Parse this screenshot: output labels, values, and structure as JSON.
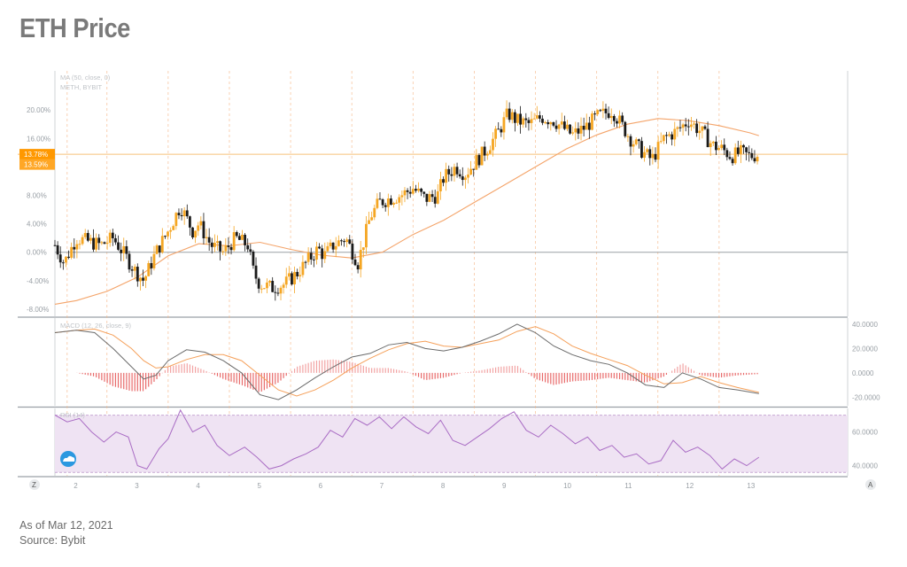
{
  "title": "ETH Price",
  "footer": {
    "date_line": "As of Mar 12, 2021",
    "source_line": "Source: Bybit"
  },
  "colors": {
    "up_candle": "#f5a623",
    "down_candle": "#1a1a1a",
    "ma_line": "#f4a46a",
    "price_line": "#f7c27a",
    "session_line": "#f6b88a",
    "zero_line": "#9aa0a6",
    "macd_line": "#6b6b6b",
    "signal_line": "#f5a05a",
    "hist_pos": "#f2a3a3",
    "hist_neg": "#e86a6a",
    "rsi_line": "#a96cc4",
    "rsi_band": "#efe3f3",
    "rsi_band_edge": "#c7a8d4",
    "badge_primary": "#ff9800",
    "badge_secondary": "#ffa726"
  },
  "panes": {
    "price": {
      "legend_line1": "MA (50, close, 0)",
      "legend_line2": "METH, BYBIT",
      "badge_primary": "13.78%",
      "badge_secondary": "13.59%"
    },
    "macd": {
      "legend": "MACD (12, 26, close, 9)"
    },
    "rsi": {
      "legend": "RSI (14)"
    }
  },
  "nav": {
    "left_button": "Z",
    "right_button": "A",
    "logo_icon": "cloud-logo-icon"
  },
  "chart_data": {
    "type": "line",
    "title": "ETH Price",
    "xlabel": "",
    "ylabel": "",
    "x_ticks": [
      "2",
      "3",
      "4",
      "5",
      "6",
      "7",
      "8",
      "9",
      "10",
      "11",
      "12",
      "13"
    ],
    "xlim": [
      1.65,
      14.6
    ],
    "price_pane": {
      "unit": "%",
      "ylim": [
        -9.0,
        25.5
      ],
      "y_ticks": [
        "20.00%",
        "16.00%",
        "12.00%",
        "8.00%",
        "4.00%",
        "0.00%",
        "-4.00%",
        "-8.00%"
      ],
      "y_tick_values": [
        20,
        16,
        12,
        8,
        4,
        0,
        -4,
        -8
      ],
      "current_value": 13.78,
      "secondary_value": 13.59,
      "close_series": {
        "name": "METH, BYBIT",
        "x": [
          1.65,
          1.8,
          2.0,
          2.2,
          2.4,
          2.6,
          2.8,
          2.95,
          3.1,
          3.3,
          3.5,
          3.7,
          3.9,
          4.0,
          4.2,
          4.4,
          4.6,
          4.8,
          4.9,
          5.0,
          5.2,
          5.4,
          5.6,
          5.8,
          5.95,
          6.05,
          6.2,
          6.4,
          6.6,
          6.8,
          6.95,
          7.1,
          7.3,
          7.5,
          7.7,
          7.9,
          8.0,
          8.2,
          8.35,
          8.5,
          8.7,
          8.9,
          9.05,
          9.2,
          9.4,
          9.6,
          9.8,
          9.95,
          10.1,
          10.3,
          10.5,
          10.75,
          10.9,
          11.05,
          11.2,
          11.4,
          11.6,
          11.8,
          12.0,
          12.2,
          12.4,
          12.55,
          12.7,
          12.85,
          13.0,
          13.15
        ],
        "y": [
          1.0,
          -1.5,
          2.0,
          1.5,
          1.0,
          2.0,
          -0.5,
          -2.5,
          -4.0,
          0.0,
          3.0,
          6.5,
          3.0,
          4.0,
          1.0,
          0.0,
          2.0,
          1.0,
          -3.0,
          -4.5,
          -5.0,
          -4.5,
          -3.0,
          -1.0,
          0.5,
          -0.5,
          1.0,
          2.0,
          -1.5,
          5.0,
          7.0,
          7.5,
          8.0,
          9.0,
          7.5,
          8.0,
          10.5,
          12.0,
          11.0,
          12.5,
          14.5,
          17.0,
          19.5,
          18.5,
          18.0,
          19.0,
          18.5,
          17.5,
          16.5,
          17.5,
          19.0,
          20.0,
          18.0,
          16.0,
          14.5,
          13.0,
          16.0,
          17.0,
          18.5,
          17.0,
          15.0,
          14.5,
          13.5,
          14.0,
          13.5,
          13.8
        ]
      },
      "ma50": {
        "name": "MA (50, close, 0)",
        "x": [
          1.65,
          2.0,
          2.5,
          3.0,
          3.5,
          4.0,
          4.5,
          5.0,
          5.5,
          6.0,
          6.5,
          7.0,
          7.5,
          8.0,
          8.5,
          9.0,
          9.5,
          10.0,
          10.5,
          11.0,
          11.5,
          12.0,
          12.5,
          13.0,
          13.15
        ],
        "y": [
          -7.3,
          -6.8,
          -5.5,
          -3.5,
          -0.5,
          1.2,
          0.9,
          1.4,
          0.4,
          -0.4,
          -0.8,
          0.0,
          2.5,
          4.5,
          7.0,
          9.5,
          12.0,
          14.5,
          16.5,
          18.0,
          18.8,
          18.5,
          17.8,
          16.8,
          16.4
        ]
      }
    },
    "macd_pane": {
      "ylim": [
        -27,
        45
      ],
      "y_ticks": [
        "40.0000",
        "20.0000",
        "0.0000",
        "-20.0000"
      ],
      "y_tick_values": [
        40,
        20,
        0,
        -20
      ],
      "macd": {
        "name": "MACD",
        "x": [
          1.65,
          2.0,
          2.3,
          2.6,
          2.9,
          3.1,
          3.3,
          3.5,
          3.8,
          4.1,
          4.4,
          4.7,
          5.0,
          5.3,
          5.6,
          5.9,
          6.2,
          6.5,
          6.8,
          7.1,
          7.4,
          7.7,
          8.0,
          8.3,
          8.6,
          8.9,
          9.2,
          9.5,
          9.8,
          10.1,
          10.4,
          10.7,
          11.0,
          11.3,
          11.6,
          11.9,
          12.2,
          12.5,
          12.8,
          13.15
        ],
        "y": [
          33,
          35,
          33,
          20,
          5,
          -5,
          -2,
          10,
          19,
          17,
          10,
          0,
          -18,
          -22,
          -14,
          -4,
          5,
          13,
          16,
          23,
          25,
          20,
          18,
          21,
          26,
          32,
          40,
          33,
          22,
          15,
          10,
          7,
          0,
          -10,
          -12,
          0,
          -5,
          -12,
          -14,
          -17
        ]
      },
      "signal": {
        "name": "Signal",
        "x": [
          1.65,
          2.0,
          2.3,
          2.6,
          2.9,
          3.1,
          3.3,
          3.5,
          3.8,
          4.1,
          4.4,
          4.7,
          5.0,
          5.3,
          5.6,
          5.9,
          6.2,
          6.5,
          6.8,
          7.1,
          7.4,
          7.7,
          8.0,
          8.3,
          8.6,
          8.9,
          9.2,
          9.5,
          9.8,
          10.1,
          10.4,
          10.7,
          11.0,
          11.3,
          11.6,
          11.9,
          12.2,
          12.5,
          12.8,
          13.15
        ],
        "y": [
          33,
          35,
          36,
          31,
          20,
          10,
          4,
          5,
          11,
          15,
          15,
          10,
          -2,
          -14,
          -19,
          -14,
          -6,
          4,
          12,
          19,
          24,
          26,
          22,
          21,
          24,
          27,
          34,
          38,
          32,
          22,
          16,
          11,
          6,
          -2,
          -9,
          -8,
          -3,
          -8,
          -12,
          -16
        ]
      }
    },
    "rsi_pane": {
      "ylim": [
        34,
        74
      ],
      "band": [
        36,
        70
      ],
      "y_ticks": [
        "60.0000",
        "40.0000"
      ],
      "y_tick_values": [
        60,
        40
      ],
      "rsi": {
        "name": "RSI (14)",
        "x": [
          1.65,
          1.85,
          2.05,
          2.25,
          2.45,
          2.65,
          2.85,
          3.0,
          3.15,
          3.35,
          3.5,
          3.7,
          3.9,
          4.1,
          4.3,
          4.5,
          4.75,
          4.95,
          5.15,
          5.35,
          5.55,
          5.75,
          5.95,
          6.15,
          6.35,
          6.55,
          6.75,
          6.95,
          7.15,
          7.35,
          7.55,
          7.75,
          7.95,
          8.15,
          8.35,
          8.55,
          8.75,
          8.95,
          9.15,
          9.35,
          9.55,
          9.75,
          9.95,
          10.15,
          10.35,
          10.55,
          10.75,
          10.95,
          11.15,
          11.35,
          11.55,
          11.75,
          11.95,
          12.15,
          12.35,
          12.55,
          12.75,
          12.95,
          13.15
        ],
        "y": [
          70,
          66,
          68,
          60,
          54,
          60,
          57,
          40,
          38,
          50,
          56,
          73,
          60,
          64,
          52,
          46,
          51,
          45,
          38,
          40,
          44,
          47,
          51,
          61,
          57,
          68,
          64,
          69,
          62,
          69,
          63,
          59,
          67,
          55,
          52,
          57,
          62,
          68,
          72,
          61,
          57,
          64,
          59,
          53,
          57,
          49,
          52,
          45,
          47,
          41,
          43,
          55,
          48,
          51,
          46,
          38,
          44,
          40,
          45
        ]
      }
    }
  }
}
